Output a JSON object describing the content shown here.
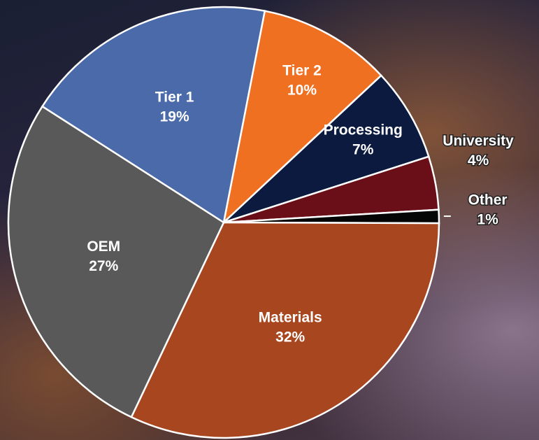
{
  "chart_data": {
    "type": "pie",
    "categories": [
      "Tier 2",
      "Processing",
      "University",
      "Other",
      "Materials",
      "OEM",
      "Tier 1"
    ],
    "values": [
      10,
      7,
      4,
      1,
      32,
      27,
      19
    ],
    "value_labels": [
      "10%",
      "7%",
      "4%",
      "1%",
      "32%",
      "27%",
      "19%"
    ],
    "colors": [
      "#f07022",
      "#0c1a3f",
      "#6a0e17",
      "#050505",
      "#a8461f",
      "#595959",
      "#4a6aa9"
    ]
  }
}
